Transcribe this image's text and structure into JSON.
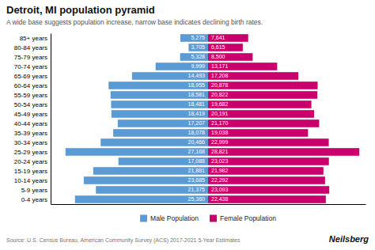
{
  "chart_data": {
    "type": "bar",
    "orientation": "horizontal",
    "title": "Detroit, MI population pyramid",
    "subtitle": "A wide base suggests population increase, narrow base indicates declining birth rates.",
    "annotations": [
      "Source: U.S. Census Bureau, American Community Survey (ACS) 2017-2021 5-Year Estimates",
      "Neilsberg"
    ],
    "categories": [
      "0-4 years",
      "5-9 years",
      "10-14 years",
      "15-19 years",
      "20-24 years",
      "25-29 years",
      "30-34 years",
      "35-39 years",
      "40-44 years",
      "45-49 years",
      "50-54 years",
      "55-59 years",
      "60-64 years",
      "65-69 years",
      "70-74 years",
      "75-79 years",
      "80-84 years",
      "85+ years"
    ],
    "series": [
      {
        "name": "Male Population",
        "color": "#5B9BD5",
        "values": [
          25360,
          21375,
          23685,
          21881,
          17088,
          27168,
          20466,
          18078,
          17207,
          18419,
          18481,
          18581,
          18955,
          14493,
          9999,
          5328,
          3705,
          5275
        ],
        "value_labels": [
          "25,360",
          "21,375",
          "23,685",
          "21,881",
          "17,088",
          "27,168",
          "20,466",
          "18,078",
          "17,207",
          "18,419",
          "18,481",
          "18,581",
          "18,955",
          "14,493",
          "9,999",
          "5,328",
          "3,705",
          "5,275"
        ]
      },
      {
        "name": "Female Population",
        "color": "#C9006B",
        "values": [
          22438,
          23093,
          22292,
          21982,
          23023,
          28821,
          22999,
          19038,
          21170,
          20191,
          19682,
          20822,
          20878,
          17208,
          13171,
          8500,
          6615,
          7641
        ],
        "value_labels": [
          "22,438",
          "23,093",
          "22,292",
          "21,982",
          "23,023",
          "28,821",
          "22,999",
          "19,038",
          "21,170",
          "20,191",
          "19,682",
          "20,822",
          "20,878",
          "17,208",
          "13,171",
          "8,500",
          "6,615",
          "7,641"
        ]
      }
    ],
    "xlim": [
      -30000,
      30000
    ],
    "xticks": [],
    "tick_labels": "y",
    "data_labels": true,
    "legend": "bottom"
  }
}
